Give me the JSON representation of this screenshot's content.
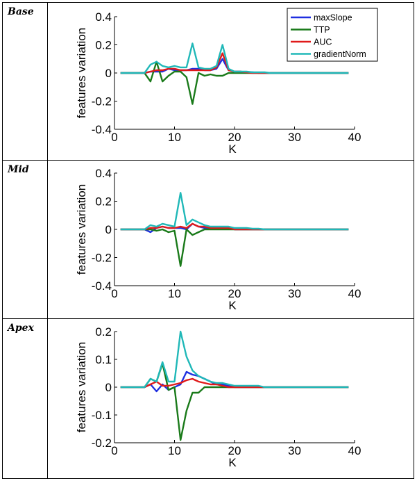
{
  "colors": {
    "maxSlope": "#1f2fe0",
    "TTP": "#1a7a1a",
    "AUC": "#e01a1a",
    "gradientNorm": "#20b8b8"
  },
  "chart_data": [
    {
      "panel_label": "Base",
      "type": "line",
      "xlabel": "K",
      "ylabel": "features variation",
      "xlim": [
        0,
        40
      ],
      "ylim": [
        -0.4,
        0.4
      ],
      "xticks": [
        "0",
        "10",
        "20",
        "30",
        "40"
      ],
      "yticks": [
        "-0.4",
        "-0.2",
        "0",
        "0.2",
        "0.4"
      ],
      "legend": {
        "position": "top-right",
        "entries": [
          "maxSlope",
          "TTP",
          "AUC",
          "gradientNorm"
        ]
      },
      "x": [
        1,
        2,
        3,
        4,
        5,
        6,
        7,
        8,
        9,
        10,
        11,
        12,
        13,
        14,
        15,
        16,
        17,
        18,
        19,
        20,
        21,
        22,
        23,
        24,
        25,
        26,
        27,
        28,
        29,
        30,
        31,
        32,
        33,
        34,
        35,
        36,
        37,
        38,
        39
      ],
      "series": [
        {
          "name": "maxSlope",
          "values": [
            0,
            0,
            0,
            0,
            0,
            0.01,
            0.01,
            0.01,
            0.03,
            0.02,
            0.02,
            0.02,
            0.03,
            0.03,
            0.02,
            0.02,
            0.03,
            0.1,
            0.02,
            0.01,
            0.01,
            0.005,
            0.005,
            0,
            0,
            0,
            0,
            0,
            0,
            0,
            0,
            0,
            0,
            0,
            0,
            0,
            0,
            0,
            0
          ]
        },
        {
          "name": "TTP",
          "values": [
            0,
            0,
            0,
            0,
            0,
            -0.06,
            0.08,
            -0.06,
            -0.02,
            0.01,
            0.01,
            -0.03,
            -0.22,
            0,
            -0.02,
            -0.01,
            -0.02,
            -0.02,
            0,
            0,
            0,
            0,
            0,
            0,
            0,
            0,
            0,
            0,
            0,
            0,
            0,
            0,
            0,
            0,
            0,
            0,
            0,
            0,
            0
          ]
        },
        {
          "name": "AUC",
          "values": [
            0,
            0,
            0,
            0,
            0,
            0.01,
            0.02,
            0.02,
            0.03,
            0.03,
            0.02,
            0.02,
            0.02,
            0.02,
            0.02,
            0.02,
            0.04,
            0.14,
            0.02,
            0.01,
            0.01,
            0.005,
            0,
            0,
            0,
            0,
            0,
            0,
            0,
            0,
            0,
            0,
            0,
            0,
            0,
            0,
            0,
            0,
            0
          ]
        },
        {
          "name": "gradientNorm",
          "values": [
            0,
            0,
            0,
            0,
            0,
            0.06,
            0.08,
            0.05,
            0.04,
            0.05,
            0.04,
            0.04,
            0.21,
            0.04,
            0.03,
            0.03,
            0.05,
            0.2,
            0.03,
            0.01,
            0.01,
            0.01,
            0.005,
            0.005,
            0.005,
            0,
            0,
            0,
            0,
            0,
            0,
            0,
            0,
            0,
            0,
            0,
            0,
            0,
            0
          ]
        }
      ]
    },
    {
      "panel_label": "Mid",
      "type": "line",
      "xlabel": "K",
      "ylabel": "features variation",
      "xlim": [
        0,
        40
      ],
      "ylim": [
        -0.4,
        0.4
      ],
      "xticks": [
        "0",
        "10",
        "20",
        "30",
        "40"
      ],
      "yticks": [
        "-0.4",
        "-0.2",
        "0",
        "0.2",
        "0.4"
      ],
      "x": [
        1,
        2,
        3,
        4,
        5,
        6,
        7,
        8,
        9,
        10,
        11,
        12,
        13,
        14,
        15,
        16,
        17,
        18,
        19,
        20,
        21,
        22,
        23,
        24,
        25,
        26,
        27,
        28,
        29,
        30,
        31,
        32,
        33,
        34,
        35,
        36,
        37,
        38,
        39
      ],
      "series": [
        {
          "name": "maxSlope",
          "values": [
            0,
            0,
            0,
            0,
            0,
            -0.02,
            0.01,
            0.02,
            0.01,
            0.01,
            0.01,
            0,
            0.04,
            0.02,
            0.01,
            0.01,
            0.01,
            0.01,
            0.01,
            0,
            0,
            0,
            0,
            0,
            0,
            0,
            0,
            0,
            0,
            0,
            0,
            0,
            0,
            0,
            0,
            0,
            0,
            0,
            0
          ]
        },
        {
          "name": "TTP",
          "values": [
            0,
            0,
            0,
            0,
            0,
            0,
            -0.01,
            0,
            -0.02,
            -0.01,
            -0.26,
            0,
            -0.04,
            -0.02,
            0,
            0,
            0,
            0,
            0,
            0,
            0,
            0,
            0,
            0,
            0,
            0,
            0,
            0,
            0,
            0,
            0,
            0,
            0,
            0,
            0,
            0,
            0,
            0,
            0
          ]
        },
        {
          "name": "AUC",
          "values": [
            0,
            0,
            0,
            0,
            0,
            0.01,
            0.01,
            0.02,
            0.01,
            0.01,
            0.02,
            0.01,
            0.04,
            0.02,
            0.02,
            0.01,
            0.01,
            0.01,
            0.01,
            0,
            0,
            0,
            0,
            0,
            0,
            0,
            0,
            0,
            0,
            0,
            0,
            0,
            0,
            0,
            0,
            0,
            0,
            0,
            0
          ]
        },
        {
          "name": "gradientNorm",
          "values": [
            0,
            0,
            0,
            0,
            0,
            0.03,
            0.02,
            0.04,
            0.03,
            0.02,
            0.26,
            0.03,
            0.07,
            0.05,
            0.03,
            0.02,
            0.02,
            0.02,
            0.02,
            0.01,
            0.01,
            0.01,
            0.005,
            0.005,
            0,
            0,
            0,
            0,
            0,
            0,
            0,
            0,
            0,
            0,
            0,
            0,
            0,
            0,
            0
          ]
        }
      ]
    },
    {
      "panel_label": "Apex",
      "type": "line",
      "xlabel": "K",
      "ylabel": "features variation",
      "xlim": [
        0,
        40
      ],
      "ylim": [
        -0.2,
        0.2
      ],
      "xticks": [
        "0",
        "10",
        "20",
        "30",
        "40"
      ],
      "yticks": [
        "-0.2",
        "-0.1",
        "0",
        "0.1",
        "0.2"
      ],
      "x": [
        1,
        2,
        3,
        4,
        5,
        6,
        7,
        8,
        9,
        10,
        11,
        12,
        13,
        14,
        15,
        16,
        17,
        18,
        19,
        20,
        21,
        22,
        23,
        24,
        25,
        26,
        27,
        28,
        29,
        30,
        31,
        32,
        33,
        34,
        35,
        36,
        37,
        38,
        39
      ],
      "series": [
        {
          "name": "maxSlope",
          "values": [
            0,
            0,
            0,
            0,
            0,
            0.01,
            -0.015,
            0.01,
            -0.01,
            0,
            0.01,
            0.055,
            0.045,
            0.04,
            0.03,
            0.02,
            0.01,
            0.01,
            0.005,
            0,
            0,
            0,
            0,
            0,
            0,
            0,
            0,
            0,
            0,
            0,
            0,
            0,
            0,
            0,
            0,
            0,
            0,
            0,
            0
          ]
        },
        {
          "name": "TTP",
          "values": [
            0,
            0,
            0,
            0,
            0,
            0.03,
            0.02,
            0.085,
            -0.01,
            0,
            -0.19,
            -0.085,
            -0.02,
            -0.02,
            0,
            0,
            0,
            0,
            0,
            0,
            0,
            0,
            0,
            0,
            0,
            0,
            0,
            0,
            0,
            0,
            0,
            0,
            0,
            0,
            0,
            0,
            0,
            0,
            0
          ]
        },
        {
          "name": "AUC",
          "values": [
            0,
            0,
            0,
            0,
            0,
            0.01,
            0.02,
            0.005,
            0.005,
            0.01,
            0.015,
            0.025,
            0.03,
            0.02,
            0.015,
            0.01,
            0.01,
            0.005,
            0,
            0,
            0,
            0,
            0,
            0,
            0,
            0,
            0,
            0,
            0,
            0,
            0,
            0,
            0,
            0,
            0,
            0,
            0,
            0,
            0
          ]
        },
        {
          "name": "gradientNorm",
          "values": [
            0,
            0,
            0,
            0,
            0,
            0.03,
            0.02,
            0.09,
            0.02,
            0.02,
            0.2,
            0.11,
            0.06,
            0.04,
            0.03,
            0.02,
            0.015,
            0.015,
            0.01,
            0.005,
            0.005,
            0.005,
            0.005,
            0.005,
            0,
            0,
            0,
            0,
            0,
            0,
            0,
            0,
            0,
            0,
            0,
            0,
            0,
            0,
            0
          ]
        }
      ]
    }
  ]
}
